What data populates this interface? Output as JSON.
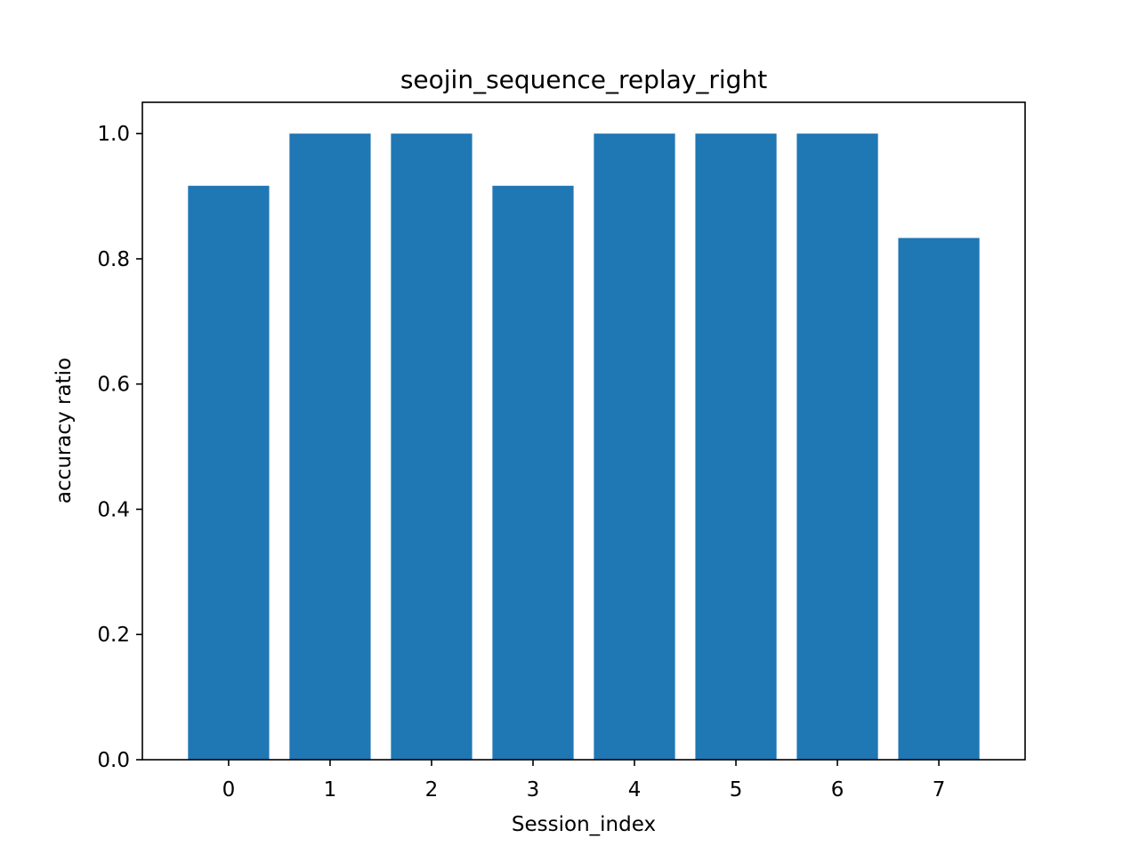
{
  "chart_data": {
    "type": "bar",
    "title": "seojin_sequence_replay_right",
    "xlabel": "Session_index",
    "ylabel": "accuracy ratio",
    "categories": [
      "0",
      "1",
      "2",
      "3",
      "4",
      "5",
      "6",
      "7"
    ],
    "values": [
      0.9167,
      1.0,
      1.0,
      0.9167,
      1.0,
      1.0,
      1.0,
      0.8333
    ],
    "ylim": [
      0,
      1.05
    ],
    "xlim": [
      -0.85,
      7.85
    ],
    "yticks": [
      0.0,
      0.2,
      0.4,
      0.6,
      0.8,
      1.0
    ],
    "ytick_labels": [
      "0.0",
      "0.2",
      "0.4",
      "0.6",
      "0.8",
      "1.0"
    ],
    "bar_width": 0.8,
    "bar_color": "#1f77b4",
    "grid": false,
    "legend": false
  }
}
